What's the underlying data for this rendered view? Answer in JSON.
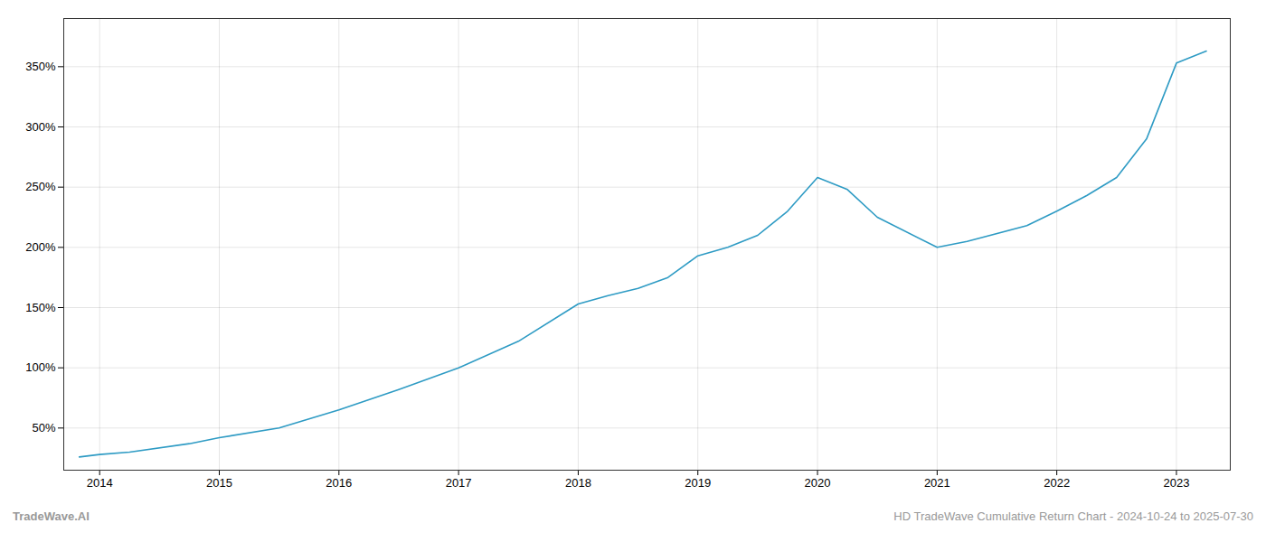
{
  "chart_data": {
    "type": "line",
    "x": [
      2013.83,
      2014.0,
      2014.25,
      2014.75,
      2015.0,
      2015.5,
      2016.0,
      2016.5,
      2017.0,
      2017.5,
      2018.0,
      2018.25,
      2018.5,
      2018.75,
      2019.0,
      2019.25,
      2019.5,
      2019.75,
      2020.0,
      2020.25,
      2020.5,
      2021.0,
      2021.25,
      2021.75,
      2022.0,
      2022.25,
      2022.5,
      2022.75,
      2023.0,
      2023.25
    ],
    "values": [
      26,
      28,
      30,
      37,
      42,
      50,
      65,
      82,
      100,
      122,
      153,
      160,
      166,
      175,
      193,
      200,
      210,
      230,
      258,
      248,
      225,
      200,
      205,
      218,
      230,
      243,
      258,
      290,
      353,
      363
    ],
    "color": "#2e9bc4",
    "xlim": [
      2013.7,
      2023.45
    ],
    "xticks": [
      2014,
      2015,
      2016,
      2017,
      2018,
      2019,
      2020,
      2021,
      2022,
      2023
    ],
    "ylim": [
      15,
      390
    ],
    "yticks": [
      {
        "value": 50,
        "label": "50%"
      },
      {
        "value": 100,
        "label": "100%"
      },
      {
        "value": 150,
        "label": "150%"
      },
      {
        "value": 200,
        "label": "200%"
      },
      {
        "value": 250,
        "label": "250%"
      },
      {
        "value": 300,
        "label": "300%"
      },
      {
        "value": 350,
        "label": "350%"
      }
    ],
    "grid": true,
    "annotations": [
      "TradeWave.AI",
      "HD TradeWave Cumulative Return Chart - 2024-10-24 to 2025-07-30"
    ]
  }
}
